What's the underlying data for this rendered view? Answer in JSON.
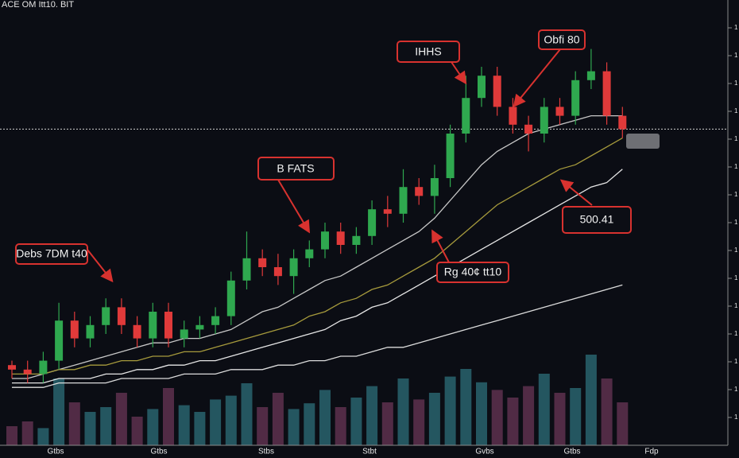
{
  "chart_data": {
    "type": "candlestick",
    "title": "ACE OM Itt10. BIT",
    "ylim": [
      0,
      100
    ],
    "yticks": [
      {
        "value": 6.25,
        "label": "1"
      },
      {
        "value": 12.5,
        "label": "1"
      },
      {
        "value": 18.75,
        "label": "1"
      },
      {
        "value": 25,
        "label": "1"
      },
      {
        "value": 31.25,
        "label": "1"
      },
      {
        "value": 37.5,
        "label": "1"
      },
      {
        "value": 43.75,
        "label": "1"
      },
      {
        "value": 50,
        "label": "1"
      },
      {
        "value": 56.25,
        "label": "1"
      },
      {
        "value": 62.5,
        "label": "1"
      },
      {
        "value": 68.75,
        "label": "1"
      },
      {
        "value": 75,
        "label": "1"
      },
      {
        "value": 81.25,
        "label": "1"
      },
      {
        "value": 87.5,
        "label": "1"
      },
      {
        "value": 93.75,
        "label": "1"
      }
    ],
    "x_axis_labels": [
      "Gtbs",
      "Gtbs",
      "Stbs",
      "Stbt",
      "Gvbs",
      "Gtbs",
      "Fdp"
    ],
    "up_color": "#2fa84f",
    "down_color": "#e03a3a",
    "open": [
      18,
      17,
      16,
      19,
      28,
      24,
      27,
      31,
      27,
      24,
      30,
      24,
      26,
      27,
      29,
      37,
      42,
      40,
      38,
      42,
      44,
      48,
      45,
      47,
      53,
      52,
      58,
      56,
      60,
      70,
      78,
      83,
      76,
      72,
      70,
      76,
      74,
      82,
      84,
      74
    ],
    "close": [
      17,
      16,
      19,
      28,
      24,
      27,
      31,
      27,
      24,
      30,
      24,
      26,
      27,
      29,
      37,
      42,
      40,
      38,
      42,
      44,
      48,
      45,
      47,
      53,
      52,
      58,
      56,
      60,
      70,
      78,
      83,
      76,
      72,
      70,
      76,
      74,
      82,
      84,
      74,
      71
    ],
    "high": [
      19,
      19,
      21,
      32,
      30,
      29,
      33,
      33,
      29,
      32,
      32,
      28,
      29,
      31,
      39,
      48,
      44,
      43,
      44,
      46,
      50,
      50,
      49,
      55,
      56,
      62,
      60,
      63,
      72,
      83,
      85,
      85,
      78,
      74,
      78,
      78,
      84,
      89,
      86,
      76
    ],
    "low": [
      15,
      14,
      14,
      17,
      22,
      22,
      25,
      25,
      22,
      22,
      22,
      22,
      24,
      25,
      27,
      35,
      38,
      36,
      34,
      40,
      42,
      43,
      43,
      45,
      49,
      50,
      54,
      52,
      58,
      68,
      76,
      74,
      70,
      66,
      68,
      72,
      72,
      80,
      72,
      69
    ],
    "series": [
      {
        "color": "#c8c8c8",
        "values": [
          15,
          15,
          16,
          17,
          18,
          19,
          20,
          21,
          22,
          23,
          23,
          24,
          24,
          25,
          26,
          28,
          30,
          31,
          33,
          35,
          37,
          38,
          40,
          42,
          44,
          46,
          48,
          51,
          55,
          59,
          63,
          66,
          68,
          70,
          71,
          72,
          73,
          74,
          74,
          74
        ]
      },
      {
        "color": "#a69a3c",
        "values": [
          16,
          16,
          16,
          17,
          17,
          18,
          18,
          19,
          19,
          20,
          20,
          21,
          21,
          22,
          23,
          24,
          25,
          26,
          27,
          29,
          30,
          32,
          33,
          35,
          36,
          38,
          40,
          42,
          45,
          48,
          51,
          54,
          56,
          58,
          60,
          62,
          63,
          65,
          67,
          69
        ]
      },
      {
        "color": "#e6e6e6",
        "values": [
          14,
          14,
          14,
          15,
          15,
          15,
          16,
          16,
          17,
          17,
          18,
          18,
          19,
          19,
          20,
          21,
          22,
          23,
          24,
          25,
          26,
          28,
          29,
          31,
          32,
          34,
          36,
          38,
          40,
          42,
          44,
          46,
          48,
          50,
          52,
          54,
          56,
          58,
          59,
          62
        ]
      },
      {
        "color": "#dcdcdc",
        "values": [
          13,
          13,
          13,
          14,
          14,
          14,
          14,
          15,
          15,
          15,
          15,
          16,
          16,
          16,
          17,
          17,
          17,
          18,
          18,
          19,
          19,
          20,
          20,
          21,
          22,
          22,
          23,
          24,
          25,
          26,
          27,
          28,
          29,
          30,
          31,
          32,
          33,
          34,
          35,
          36
        ]
      }
    ],
    "volume_lim": [
      0,
      100
    ],
    "volume": [
      20,
      25,
      18,
      70,
      45,
      35,
      40,
      55,
      30,
      38,
      60,
      42,
      35,
      48,
      52,
      65,
      40,
      55,
      38,
      44,
      58,
      40,
      50,
      62,
      45,
      70,
      48,
      55,
      72,
      80,
      66,
      58,
      50,
      62,
      75,
      55,
      60,
      95,
      70,
      45
    ],
    "volume_up_color": "#2e6f7a",
    "volume_down_color": "#6a3555",
    "price_line": 71,
    "annotations": [
      "IHHS",
      "Obfi 80",
      "B FATS",
      "Debs 7DM t40",
      "Rg 40¢ tt10",
      "500.41"
    ]
  }
}
